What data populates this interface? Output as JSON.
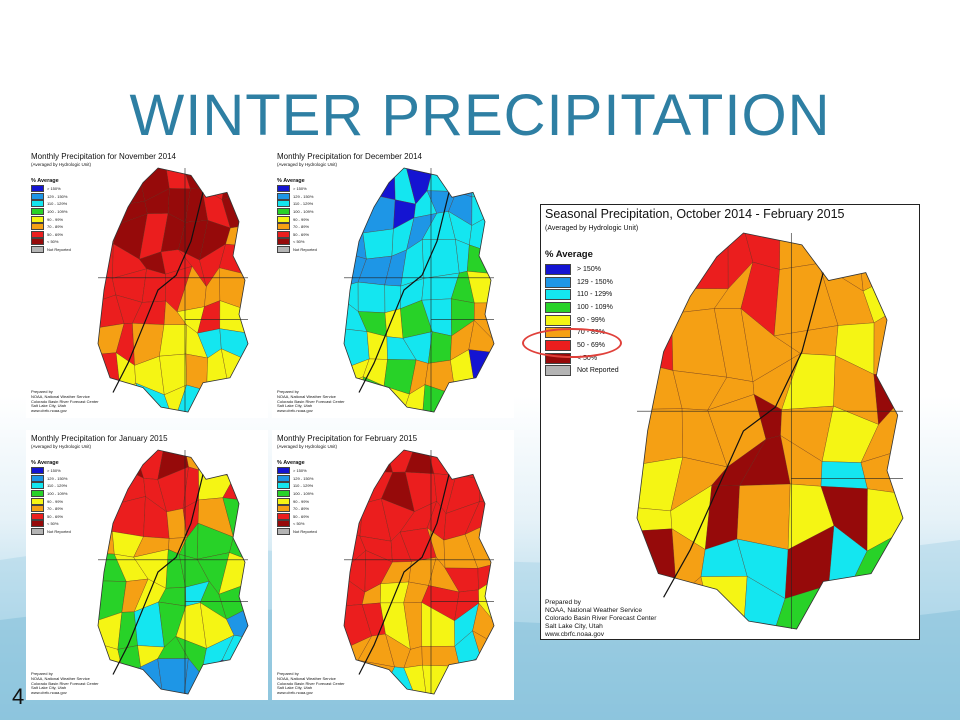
{
  "slide": {
    "title": "WINTER PRECIPITATION",
    "number": "4"
  },
  "legend": {
    "heading": "% Average",
    "items": [
      {
        "label": "> 150%",
        "color": "#1414d2"
      },
      {
        "label": "129 - 150%",
        "color": "#1e96e6"
      },
      {
        "label": "110 - 129%",
        "color": "#14e6f0"
      },
      {
        "label": "100 - 109%",
        "color": "#28d228"
      },
      {
        "label": "90 - 99%",
        "color": "#f5f514"
      },
      {
        "label": "70 - 89%",
        "color": "#f5a014"
      },
      {
        "label": "50 - 69%",
        "color": "#eb1e1e"
      },
      {
        "label": "< 50%",
        "color": "#960a0a"
      },
      {
        "label": "Not Reported",
        "color": "#b4b4b4"
      }
    ]
  },
  "credits": {
    "line1": "Prepared by",
    "line2": "NOAA, National Weather Service",
    "line3": "Colorado Basin River Forecast Center",
    "line4": "Salt Lake City, Utah",
    "line5": "www.cbrfc.noaa.gov"
  },
  "maps": {
    "nov": {
      "title": "Monthly Precipitation for November 2014",
      "subtitle": "(Averaged by Hydrologic Unit)",
      "palette": [
        "#960a0a",
        "#960a0a",
        "#960a0a",
        "#eb1e1e",
        "#eb1e1e",
        "#f5a014",
        "#f5f514",
        "#14e6f0",
        "#1e96e6",
        "#1414d2"
      ]
    },
    "dec": {
      "title": "Monthly Precipitation for December 2014",
      "subtitle": "(Averaged by Hydrologic Unit)",
      "palette": [
        "#1414d2",
        "#1414d2",
        "#1e96e6",
        "#14e6f0",
        "#14e6f0",
        "#28d228",
        "#f5f514",
        "#f5a014",
        "#1414d2",
        "#1e96e6"
      ]
    },
    "jan": {
      "title": "Monthly Precipitation for January 2015",
      "subtitle": "(Averaged by Hydrologic Unit)",
      "palette": [
        "#960a0a",
        "#eb1e1e",
        "#eb1e1e",
        "#f5a014",
        "#f5f514",
        "#28d228",
        "#14e6f0",
        "#1e96e6",
        "#1414d2",
        "#960a0a"
      ]
    },
    "feb": {
      "title": "Monthly Precipitation for February 2015",
      "subtitle": "(Averaged by Hydrologic Unit)",
      "palette": [
        "#960a0a",
        "#960a0a",
        "#eb1e1e",
        "#eb1e1e",
        "#eb1e1e",
        "#f5a014",
        "#f5f514",
        "#14e6f0",
        "#1e96e6",
        "#28d228"
      ]
    },
    "season": {
      "title": "Seasonal Precipitation, October 2014 - February 2015",
      "subtitle": "(Averaged by Hydrologic Unit)",
      "palette": [
        "#eb1e1e",
        "#eb1e1e",
        "#f5a014",
        "#f5a014",
        "#f5a014",
        "#f5f514",
        "#960a0a",
        "#14e6f0",
        "#28d228",
        "#eb1e1e"
      ]
    }
  }
}
